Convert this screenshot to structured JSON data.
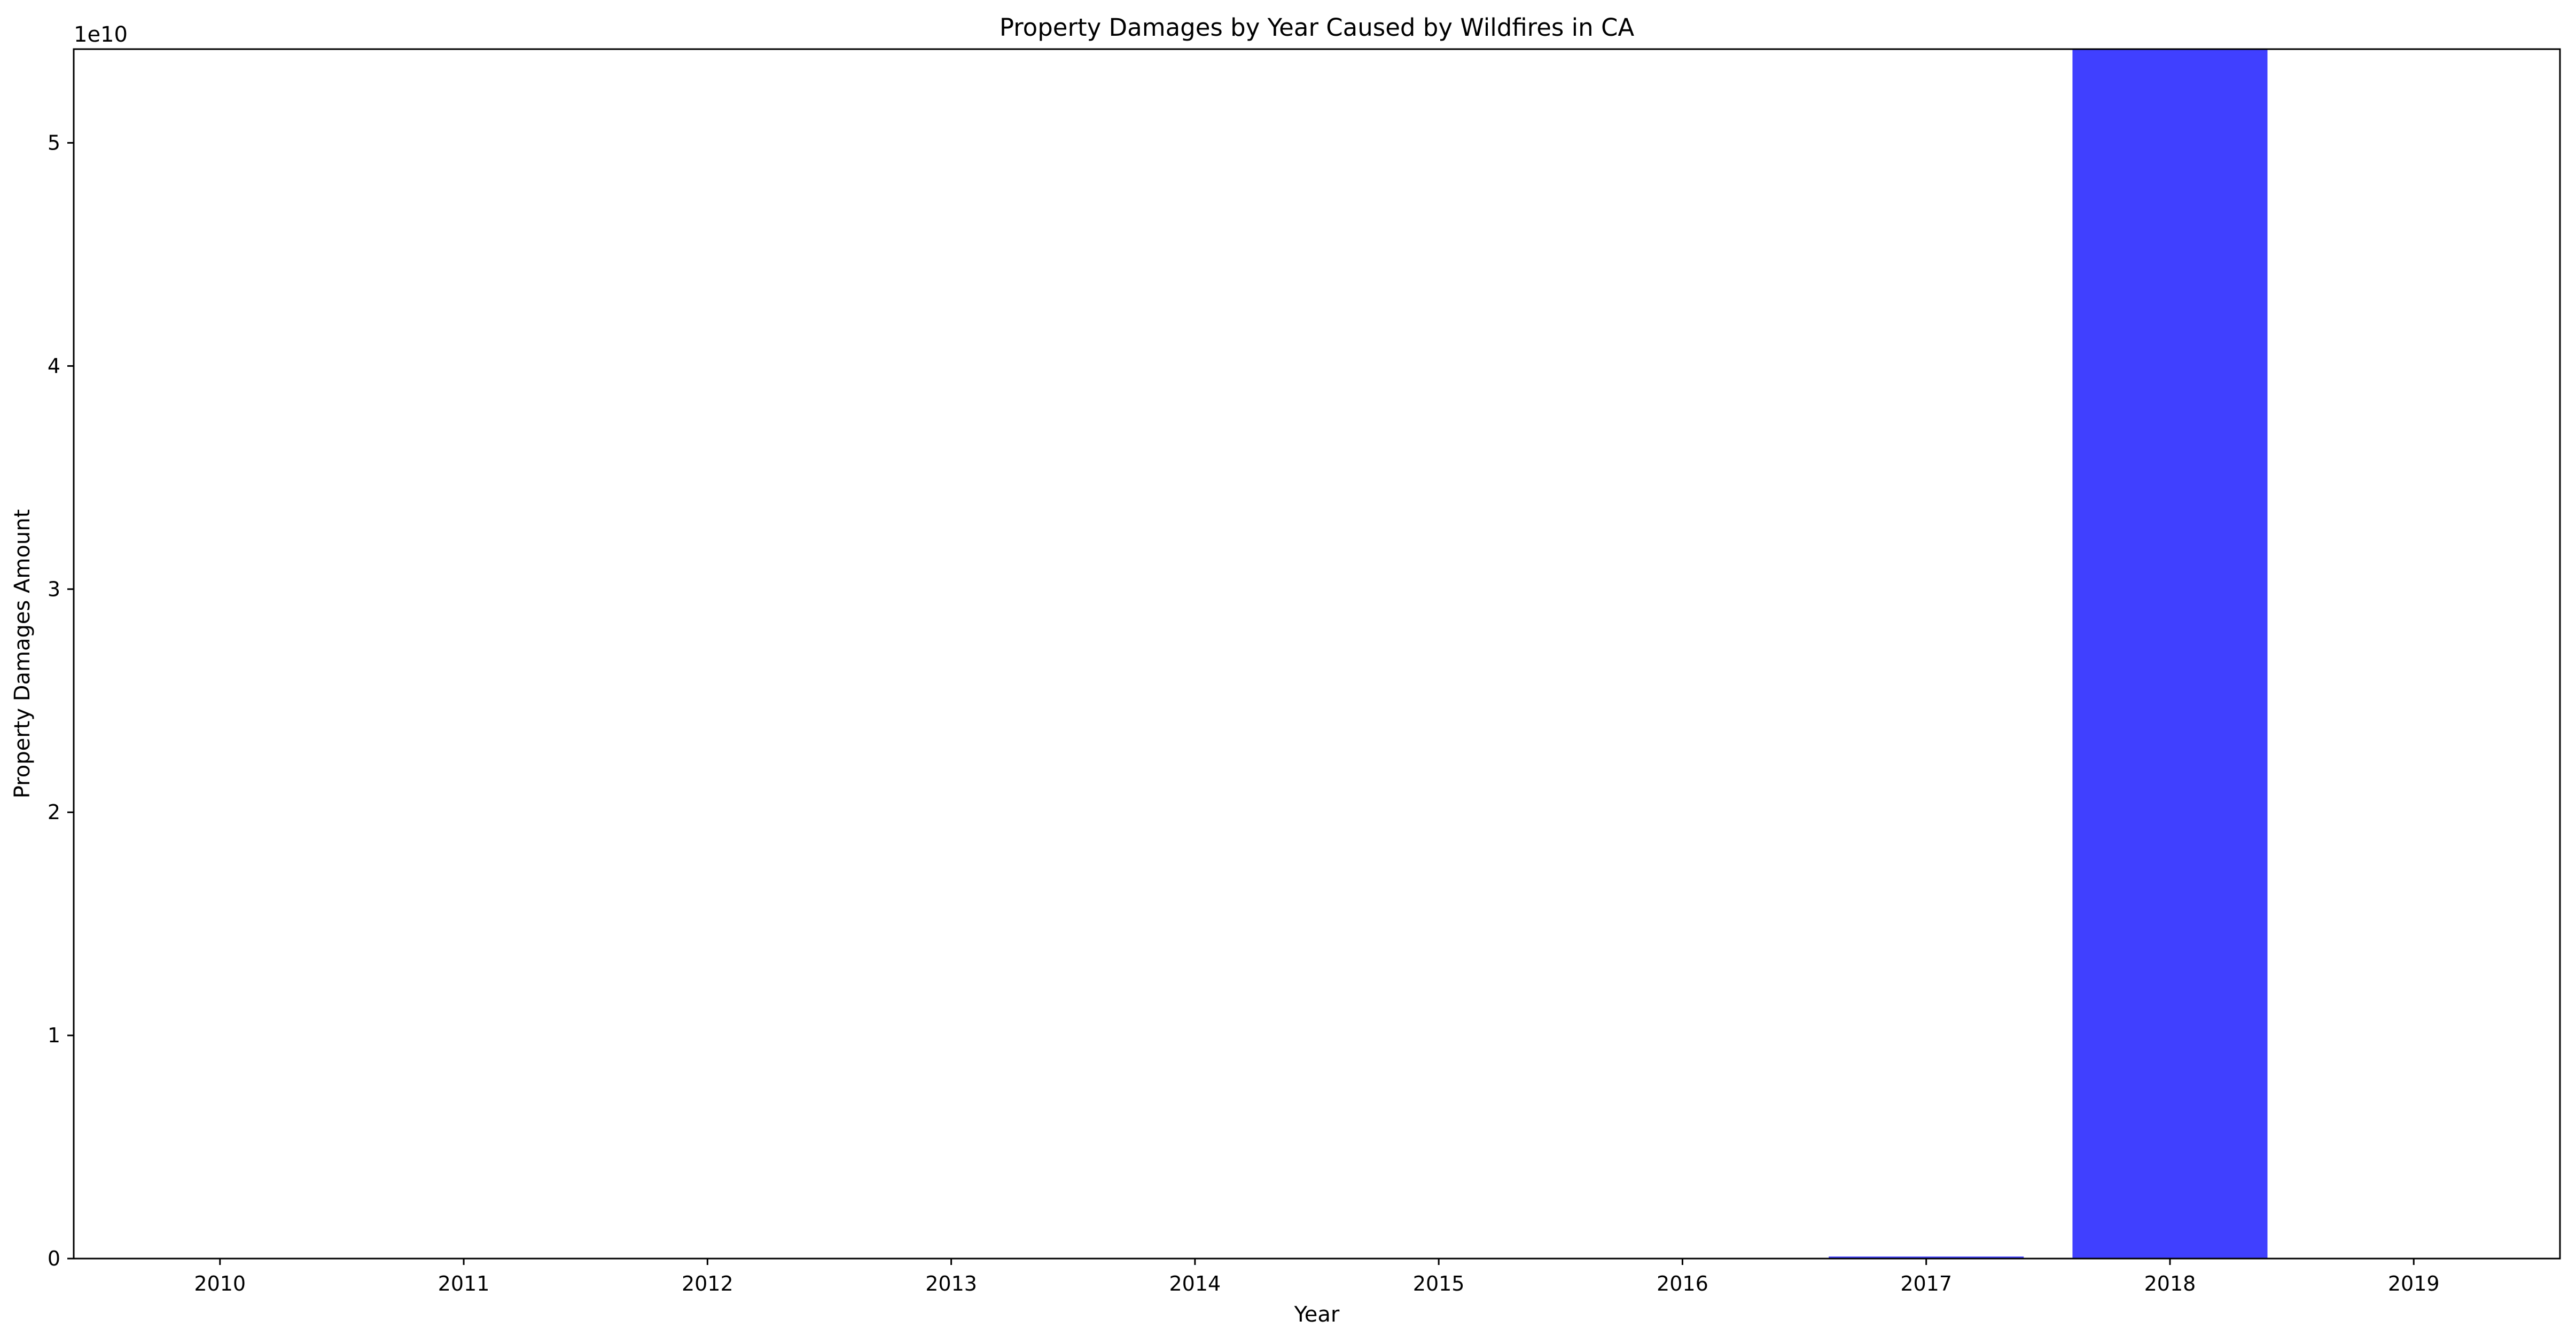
{
  "chart_data": {
    "type": "bar",
    "title": "Property Damages by Year Caused by Wildfires in CA",
    "xlabel": "Year",
    "ylabel": "Property Damages Amount",
    "y_offset_label": "1e10",
    "categories": [
      "2010",
      "2011",
      "2012",
      "2013",
      "2014",
      "2015",
      "2016",
      "2017",
      "2018",
      "2019"
    ],
    "values": [
      0,
      0,
      0,
      0,
      30000000,
      0,
      35000000,
      90000000,
      54500000000,
      0
    ],
    "ylim": [
      0,
      54200000000
    ],
    "yticks": [
      0,
      10000000000,
      20000000000,
      30000000000,
      40000000000,
      50000000000
    ],
    "ytick_labels": [
      "0",
      "1",
      "2",
      "3",
      "4",
      "5"
    ],
    "bar_color": "#4040ff",
    "grid": false,
    "legend": false
  }
}
